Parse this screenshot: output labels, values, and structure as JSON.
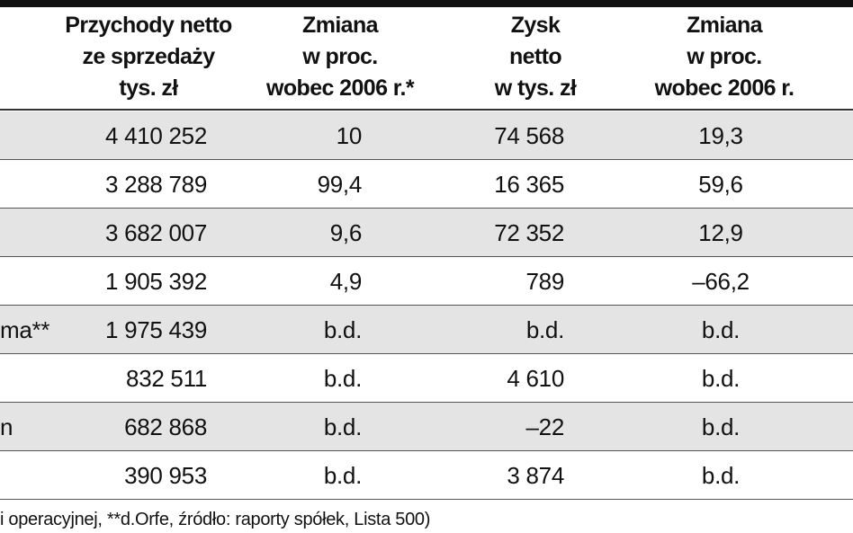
{
  "table": {
    "header": [
      [
        "Przychody netto",
        "ze sprzedaży",
        "tys. zł"
      ],
      [
        "Zmiana",
        "w proc.",
        "wobec 2006 r.*"
      ],
      [
        "Zysk",
        "netto",
        "w tys. zł"
      ],
      [
        "Zmiana",
        "w proc.",
        "wobec 2006 r."
      ]
    ],
    "rows": [
      {
        "cells": [
          "4 410 252",
          "10",
          "74 568",
          "19,3"
        ]
      },
      {
        "cells": [
          "3 288 789",
          "99,4",
          "16 365",
          "59,6"
        ]
      },
      {
        "cells": [
          "3 682 007",
          "9,6",
          "72 352",
          "12,9"
        ]
      },
      {
        "cells": [
          "1 905 392",
          "4,9",
          "789",
          "–66,2"
        ]
      },
      {
        "label": "ma**",
        "cells": [
          "1 975 439",
          "b.d.",
          "b.d.",
          "b.d."
        ]
      },
      {
        "cells": [
          "832 511",
          "b.d.",
          "4 610",
          "b.d."
        ]
      },
      {
        "label": "n",
        "cells": [
          "682 868",
          "b.d.",
          "–22",
          "b.d."
        ]
      },
      {
        "cells": [
          "390 953",
          "b.d.",
          "3 874",
          "b.d."
        ]
      }
    ],
    "footnote": "i operacyjnej, **d.Orfe, źródło: raporty spółek, Lista 500)"
  }
}
